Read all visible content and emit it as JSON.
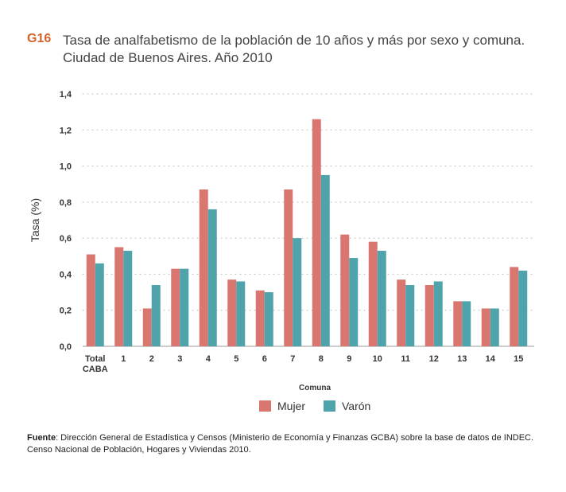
{
  "figure": {
    "code": "G16",
    "title_line1": "Tasa de analfabetismo de la población de 10 años y más por sexo y comuna.",
    "title_line2": "Ciudad de Buenos Aires. Año 2010"
  },
  "source": {
    "label": "Fuente",
    "line1": ": Dirección General de Estadística y Censos (Ministerio de Economía y Finanzas GCBA) sobre la base de datos de INDEC.",
    "line2": "Censo Nacional de Población, Hogares y Viviendas 2010."
  },
  "colors": {
    "mujer": "#d97670",
    "varon": "#4fa3aa",
    "grid": "#b8b8b8",
    "text": "#333333"
  },
  "chart_data": {
    "type": "bar",
    "xlabel": "Comuna",
    "ylabel": "Tasa (%)",
    "ylim": [
      0,
      1.4
    ],
    "yticks": [
      "0,0",
      "0,2",
      "0,4",
      "0,6",
      "0,8",
      "1,0",
      "1,2",
      "1,4"
    ],
    "grid": true,
    "legend_position": "bottom",
    "categories": [
      [
        "Total",
        "CABA"
      ],
      [
        "1"
      ],
      [
        "2"
      ],
      [
        "3"
      ],
      [
        "4"
      ],
      [
        "5"
      ],
      [
        "6"
      ],
      [
        "7"
      ],
      [
        "8"
      ],
      [
        "9"
      ],
      [
        "10"
      ],
      [
        "11"
      ],
      [
        "12"
      ],
      [
        "13"
      ],
      [
        "14"
      ],
      [
        "15"
      ]
    ],
    "series": [
      {
        "name": "Mujer",
        "color": "#d97670",
        "values": [
          0.51,
          0.55,
          0.21,
          0.43,
          0.87,
          0.37,
          0.31,
          0.87,
          1.26,
          0.62,
          0.58,
          0.37,
          0.34,
          0.25,
          0.21,
          0.44
        ]
      },
      {
        "name": "Varón",
        "color": "#4fa3aa",
        "values": [
          0.46,
          0.53,
          0.34,
          0.43,
          0.76,
          0.36,
          0.3,
          0.6,
          0.95,
          0.49,
          0.53,
          0.34,
          0.36,
          0.25,
          0.21,
          0.42
        ]
      }
    ]
  }
}
